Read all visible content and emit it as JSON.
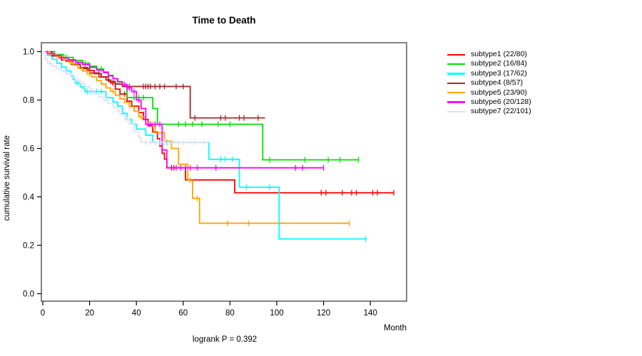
{
  "title": "Time to Death",
  "axes": {
    "xlabel": "Month",
    "ylabel": "cumulative survival rate",
    "x_ticks": [
      {
        "label": "0",
        "value": 0
      },
      {
        "label": "20",
        "value": 20
      },
      {
        "label": "40",
        "value": 40
      },
      {
        "label": "60",
        "value": 60
      },
      {
        "label": "80",
        "value": 80
      },
      {
        "label": "100",
        "value": 100
      },
      {
        "label": "120",
        "value": 120
      },
      {
        "label": "140",
        "value": 140
      }
    ],
    "y_ticks": [
      {
        "label": "0.0",
        "value": 0.0
      },
      {
        "label": "0.2",
        "value": 0.2
      },
      {
        "label": "0.4",
        "value": 0.4
      },
      {
        "label": "0.6",
        "value": 0.6
      },
      {
        "label": "0.8",
        "value": 0.8
      },
      {
        "label": "1.0",
        "value": 1.0
      }
    ]
  },
  "annotation": {
    "logrank_label": "logrank P = 0.392"
  },
  "legend": {
    "items": [
      {
        "id": "subtype1",
        "label": "subtype1 (22/80)",
        "color": "#FF0000"
      },
      {
        "id": "subtype2",
        "label": "subtype2 (16/84)",
        "color": "#00E000"
      },
      {
        "id": "subtype3",
        "label": "subtype3 (17/62)",
        "color": "#00FFFF"
      },
      {
        "id": "subtype4",
        "label": "subtype4 (8/57)",
        "color": "#A52A2A"
      },
      {
        "id": "subtype5",
        "label": "subtype5 (23/90)",
        "color": "#FFA500"
      },
      {
        "id": "subtype6",
        "label": "subtype6 (20/128)",
        "color": "#FF00FF"
      },
      {
        "id": "subtype7",
        "label": "subtype7 (22/101)",
        "color": "#E0E0F4"
      }
    ]
  },
  "chart_data": {
    "type": "line",
    "subtype": "kaplan-meier-step",
    "title": "Time to Death",
    "xlabel": "Month",
    "ylabel": "cumulative survival rate",
    "xlim": [
      0,
      155
    ],
    "ylim": [
      0.0,
      1.0
    ],
    "grid": false,
    "legend_position": "right-outside",
    "series": [
      {
        "name": "subtype1",
        "events_total": "22/80",
        "color": "#FF0000",
        "steps": [
          [
            0,
            1.0
          ],
          [
            4,
            0.987
          ],
          [
            7,
            0.974
          ],
          [
            10,
            0.961
          ],
          [
            13,
            0.948
          ],
          [
            16,
            0.935
          ],
          [
            19,
            0.922
          ],
          [
            22,
            0.909
          ],
          [
            25,
            0.896
          ],
          [
            27,
            0.883
          ],
          [
            29,
            0.87
          ],
          [
            31,
            0.845
          ],
          [
            33,
            0.825
          ],
          [
            36,
            0.795
          ],
          [
            38,
            0.775
          ],
          [
            41,
            0.748
          ],
          [
            43,
            0.72
          ],
          [
            45,
            0.694
          ],
          [
            47,
            0.668
          ],
          [
            49,
            0.64
          ],
          [
            50,
            0.61
          ],
          [
            51,
            0.58
          ],
          [
            52,
            0.556
          ],
          [
            53,
            0.52
          ],
          [
            61,
            0.47
          ],
          [
            82,
            0.417
          ]
        ],
        "end": 150,
        "censors": [
          8,
          15,
          24,
          30,
          35,
          55,
          56,
          119,
          121,
          128,
          132,
          134,
          141,
          143,
          150
        ]
      },
      {
        "name": "subtype2",
        "events_total": "16/84",
        "color": "#00E000",
        "steps": [
          [
            0,
            1.0
          ],
          [
            5,
            0.988
          ],
          [
            9,
            0.976
          ],
          [
            13,
            0.964
          ],
          [
            17,
            0.952
          ],
          [
            20,
            0.94
          ],
          [
            23,
            0.928
          ],
          [
            26,
            0.916
          ],
          [
            28,
            0.902
          ],
          [
            30,
            0.888
          ],
          [
            32,
            0.874
          ],
          [
            34,
            0.858
          ],
          [
            36,
            0.81
          ],
          [
            47,
            0.765
          ],
          [
            49,
            0.7
          ],
          [
            94,
            0.553
          ]
        ],
        "end": 135,
        "censors": [
          10,
          18,
          25,
          39,
          41,
          43,
          58,
          61,
          64,
          68,
          75,
          80,
          97,
          112,
          122,
          127,
          135
        ]
      },
      {
        "name": "subtype3",
        "events_total": "17/62",
        "color": "#00FFFF",
        "steps": [
          [
            0,
            1.0
          ],
          [
            2,
            0.984
          ],
          [
            4,
            0.968
          ],
          [
            6,
            0.952
          ],
          [
            8,
            0.936
          ],
          [
            10,
            0.92
          ],
          [
            12,
            0.9
          ],
          [
            13,
            0.885
          ],
          [
            14,
            0.87
          ],
          [
            16,
            0.855
          ],
          [
            18,
            0.835
          ],
          [
            27,
            0.81
          ],
          [
            30,
            0.792
          ],
          [
            32,
            0.775
          ],
          [
            34,
            0.745
          ],
          [
            36,
            0.72
          ],
          [
            38,
            0.7
          ],
          [
            40,
            0.68
          ],
          [
            44,
            0.655
          ],
          [
            47,
            0.625
          ],
          [
            71,
            0.555
          ],
          [
            84,
            0.44
          ],
          [
            101,
            0.226
          ]
        ],
        "end": 138,
        "censors": [
          15,
          17,
          19,
          21,
          23,
          25,
          50,
          53,
          76,
          78,
          81,
          87,
          97,
          138
        ]
      },
      {
        "name": "subtype4",
        "events_total": "8/57",
        "color": "#A52A2A",
        "steps": [
          [
            0,
            1.0
          ],
          [
            4,
            0.982
          ],
          [
            8,
            0.965
          ],
          [
            12,
            0.947
          ],
          [
            16,
            0.93
          ],
          [
            20,
            0.912
          ],
          [
            24,
            0.895
          ],
          [
            28,
            0.877
          ],
          [
            31,
            0.866
          ],
          [
            34,
            0.856
          ],
          [
            63,
            0.726
          ]
        ],
        "end": 95,
        "censors": [
          36,
          37,
          43,
          44,
          45,
          46,
          48,
          50,
          52,
          57,
          60,
          65,
          76,
          78,
          84,
          86,
          92
        ]
      },
      {
        "name": "subtype5",
        "events_total": "23/90",
        "color": "#FFA500",
        "steps": [
          [
            0,
            1.0
          ],
          [
            3,
            0.989
          ],
          [
            6,
            0.978
          ],
          [
            9,
            0.967
          ],
          [
            11,
            0.956
          ],
          [
            13,
            0.944
          ],
          [
            15,
            0.932
          ],
          [
            17,
            0.92
          ],
          [
            19,
            0.908
          ],
          [
            21,
            0.895
          ],
          [
            23,
            0.88
          ],
          [
            25,
            0.866
          ],
          [
            27,
            0.85
          ],
          [
            29,
            0.836
          ],
          [
            31,
            0.82
          ],
          [
            33,
            0.805
          ],
          [
            35,
            0.79
          ],
          [
            37,
            0.772
          ],
          [
            39,
            0.754
          ],
          [
            41,
            0.73
          ],
          [
            44,
            0.7
          ],
          [
            48,
            0.665
          ],
          [
            52,
            0.63
          ],
          [
            55,
            0.6
          ],
          [
            58,
            0.535
          ],
          [
            62,
            0.468
          ],
          [
            64,
            0.394
          ],
          [
            67,
            0.291
          ]
        ],
        "end": 131,
        "censors": [
          12,
          20,
          30,
          42,
          45,
          46,
          47,
          63,
          66,
          79,
          88,
          131
        ]
      },
      {
        "name": "subtype6",
        "events_total": "20/128",
        "color": "#FF00FF",
        "steps": [
          [
            0,
            1.0
          ],
          [
            2,
            0.992
          ],
          [
            5,
            0.984
          ],
          [
            8,
            0.975
          ],
          [
            11,
            0.966
          ],
          [
            14,
            0.956
          ],
          [
            17,
            0.946
          ],
          [
            20,
            0.935
          ],
          [
            23,
            0.924
          ],
          [
            26,
            0.913
          ],
          [
            28,
            0.9
          ],
          [
            30,
            0.888
          ],
          [
            32,
            0.876
          ],
          [
            34,
            0.864
          ],
          [
            36,
            0.85
          ],
          [
            38,
            0.835
          ],
          [
            40,
            0.8
          ],
          [
            42,
            0.765
          ],
          [
            44,
            0.7
          ],
          [
            51,
            0.594
          ],
          [
            53,
            0.52
          ]
        ],
        "end": 120,
        "censors": [
          35,
          36,
          37,
          39,
          41,
          45,
          46,
          48,
          50,
          57,
          59,
          61,
          63,
          66,
          74,
          108,
          111,
          120
        ]
      },
      {
        "name": "subtype7",
        "events_total": "22/101",
        "color": "#E0E0F4",
        "steps": [
          [
            0,
            1.0
          ],
          [
            1,
            0.97
          ],
          [
            2,
            0.952
          ],
          [
            4,
            0.94
          ],
          [
            6,
            0.93
          ],
          [
            8,
            0.92
          ],
          [
            10,
            0.908
          ],
          [
            12,
            0.895
          ],
          [
            14,
            0.882
          ],
          [
            16,
            0.868
          ],
          [
            18,
            0.855
          ],
          [
            20,
            0.84
          ],
          [
            22,
            0.826
          ],
          [
            24,
            0.812
          ],
          [
            26,
            0.8
          ],
          [
            28,
            0.785
          ],
          [
            30,
            0.77
          ],
          [
            32,
            0.755
          ],
          [
            33,
            0.74
          ],
          [
            35,
            0.72
          ],
          [
            37,
            0.7
          ],
          [
            39,
            0.668
          ],
          [
            41,
            0.645
          ],
          [
            42,
            0.625
          ]
        ],
        "end": 71,
        "censors": [
          3,
          9,
          17,
          21,
          27,
          36,
          44,
          46,
          48,
          50,
          52,
          54,
          56,
          58,
          60,
          63,
          65,
          69
        ]
      }
    ],
    "annotations": [
      "logrank P = 0.392"
    ]
  }
}
